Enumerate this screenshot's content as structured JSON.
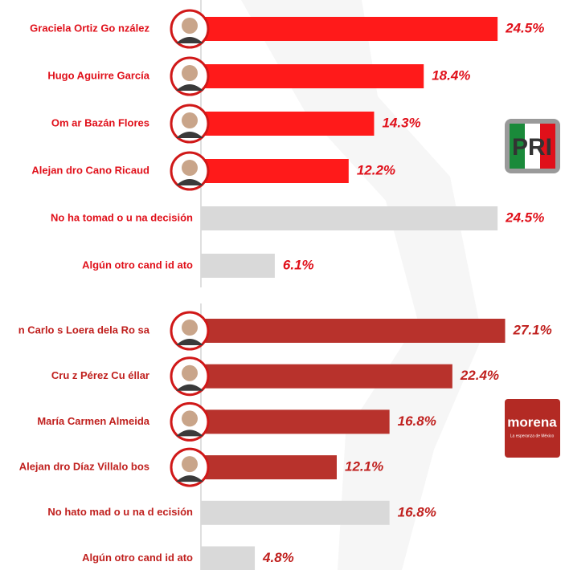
{
  "chart_data": [
    {
      "type": "bar",
      "orientation": "horizontal",
      "categories": [
        "Graciela Ortiz Go nzález",
        "Hugo Aguirre García",
        "Om ar Bazán Flores",
        "Alejan dro Cano Ricaud",
        "No ha tomad o u na decisión",
        "Algún otro cand id ato"
      ],
      "values": [
        24.5,
        18.4,
        14.3,
        12.2,
        24.5,
        6.1
      ],
      "value_labels": [
        "24.5%",
        "18.4%",
        "14.3%",
        "12.2%",
        "24.5%",
        "6.1%"
      ],
      "colors": [
        "#ff1a1a",
        "#ff1a1a",
        "#ff1a1a",
        "#ff1a1a",
        "#d9d9d9",
        "#d9d9d9"
      ],
      "label_color": "#e0101a",
      "xlim": [
        0,
        30
      ]
    },
    {
      "type": "bar",
      "orientation": "horizontal",
      "categories": [
        "n Carlo s Loera dela Ro sa",
        "Cru z Pérez Cu éllar",
        "María  Carmen Almeida",
        "Alejan dro Díaz Villalo bos",
        "No hato mad o u na d ecisión",
        "Algún otro cand id ato"
      ],
      "values": [
        27.1,
        22.4,
        16.8,
        12.1,
        16.8,
        4.8
      ],
      "value_labels": [
        "27.1%",
        "22.4%",
        "16.8%",
        "12.1%",
        "16.8%",
        "4.8%"
      ],
      "colors": [
        "#b8322c",
        "#b8322c",
        "#b8322c",
        "#b8322c",
        "#d9d9d9",
        "#d9d9d9"
      ],
      "label_color": "#c0201e",
      "xlim": [
        0,
        30
      ]
    }
  ],
  "logos": {
    "pri": "PRI",
    "morena": "morena",
    "morena_tagline": "La esperanza de México"
  }
}
